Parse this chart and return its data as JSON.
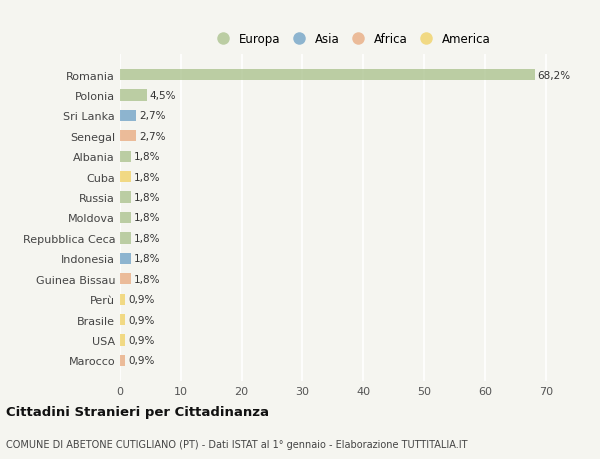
{
  "countries": [
    "Romania",
    "Polonia",
    "Sri Lanka",
    "Senegal",
    "Albania",
    "Cuba",
    "Russia",
    "Moldova",
    "Repubblica Ceca",
    "Indonesia",
    "Guinea Bissau",
    "Perù",
    "Brasile",
    "USA",
    "Marocco"
  ],
  "values": [
    68.2,
    4.5,
    2.7,
    2.7,
    1.8,
    1.8,
    1.8,
    1.8,
    1.8,
    1.8,
    1.8,
    0.9,
    0.9,
    0.9,
    0.9
  ],
  "labels": [
    "68,2%",
    "4,5%",
    "2,7%",
    "2,7%",
    "1,8%",
    "1,8%",
    "1,8%",
    "1,8%",
    "1,8%",
    "1,8%",
    "1,8%",
    "0,9%",
    "0,9%",
    "0,9%",
    "0,9%"
  ],
  "continents": [
    "Europa",
    "Europa",
    "Asia",
    "Africa",
    "Europa",
    "America",
    "Europa",
    "Europa",
    "Europa",
    "Asia",
    "Africa",
    "America",
    "America",
    "America",
    "Africa"
  ],
  "continent_colors": {
    "Europa": "#a8c08a",
    "Asia": "#6a9ec4",
    "Africa": "#e8a87c",
    "America": "#f0d060"
  },
  "legend_order": [
    "Europa",
    "Asia",
    "Africa",
    "America"
  ],
  "xlim": [
    0,
    73
  ],
  "xticks": [
    0,
    10,
    20,
    30,
    40,
    50,
    60,
    70
  ],
  "background_color": "#f5f5f0",
  "grid_color": "#ffffff",
  "title": "Cittadini Stranieri per Cittadinanza",
  "subtitle": "COMUNE DI ABETONE CUTIGLIANO (PT) - Dati ISTAT al 1° gennaio - Elaborazione TUTTITALIA.IT",
  "bar_alpha": 0.75,
  "bar_height": 0.55
}
